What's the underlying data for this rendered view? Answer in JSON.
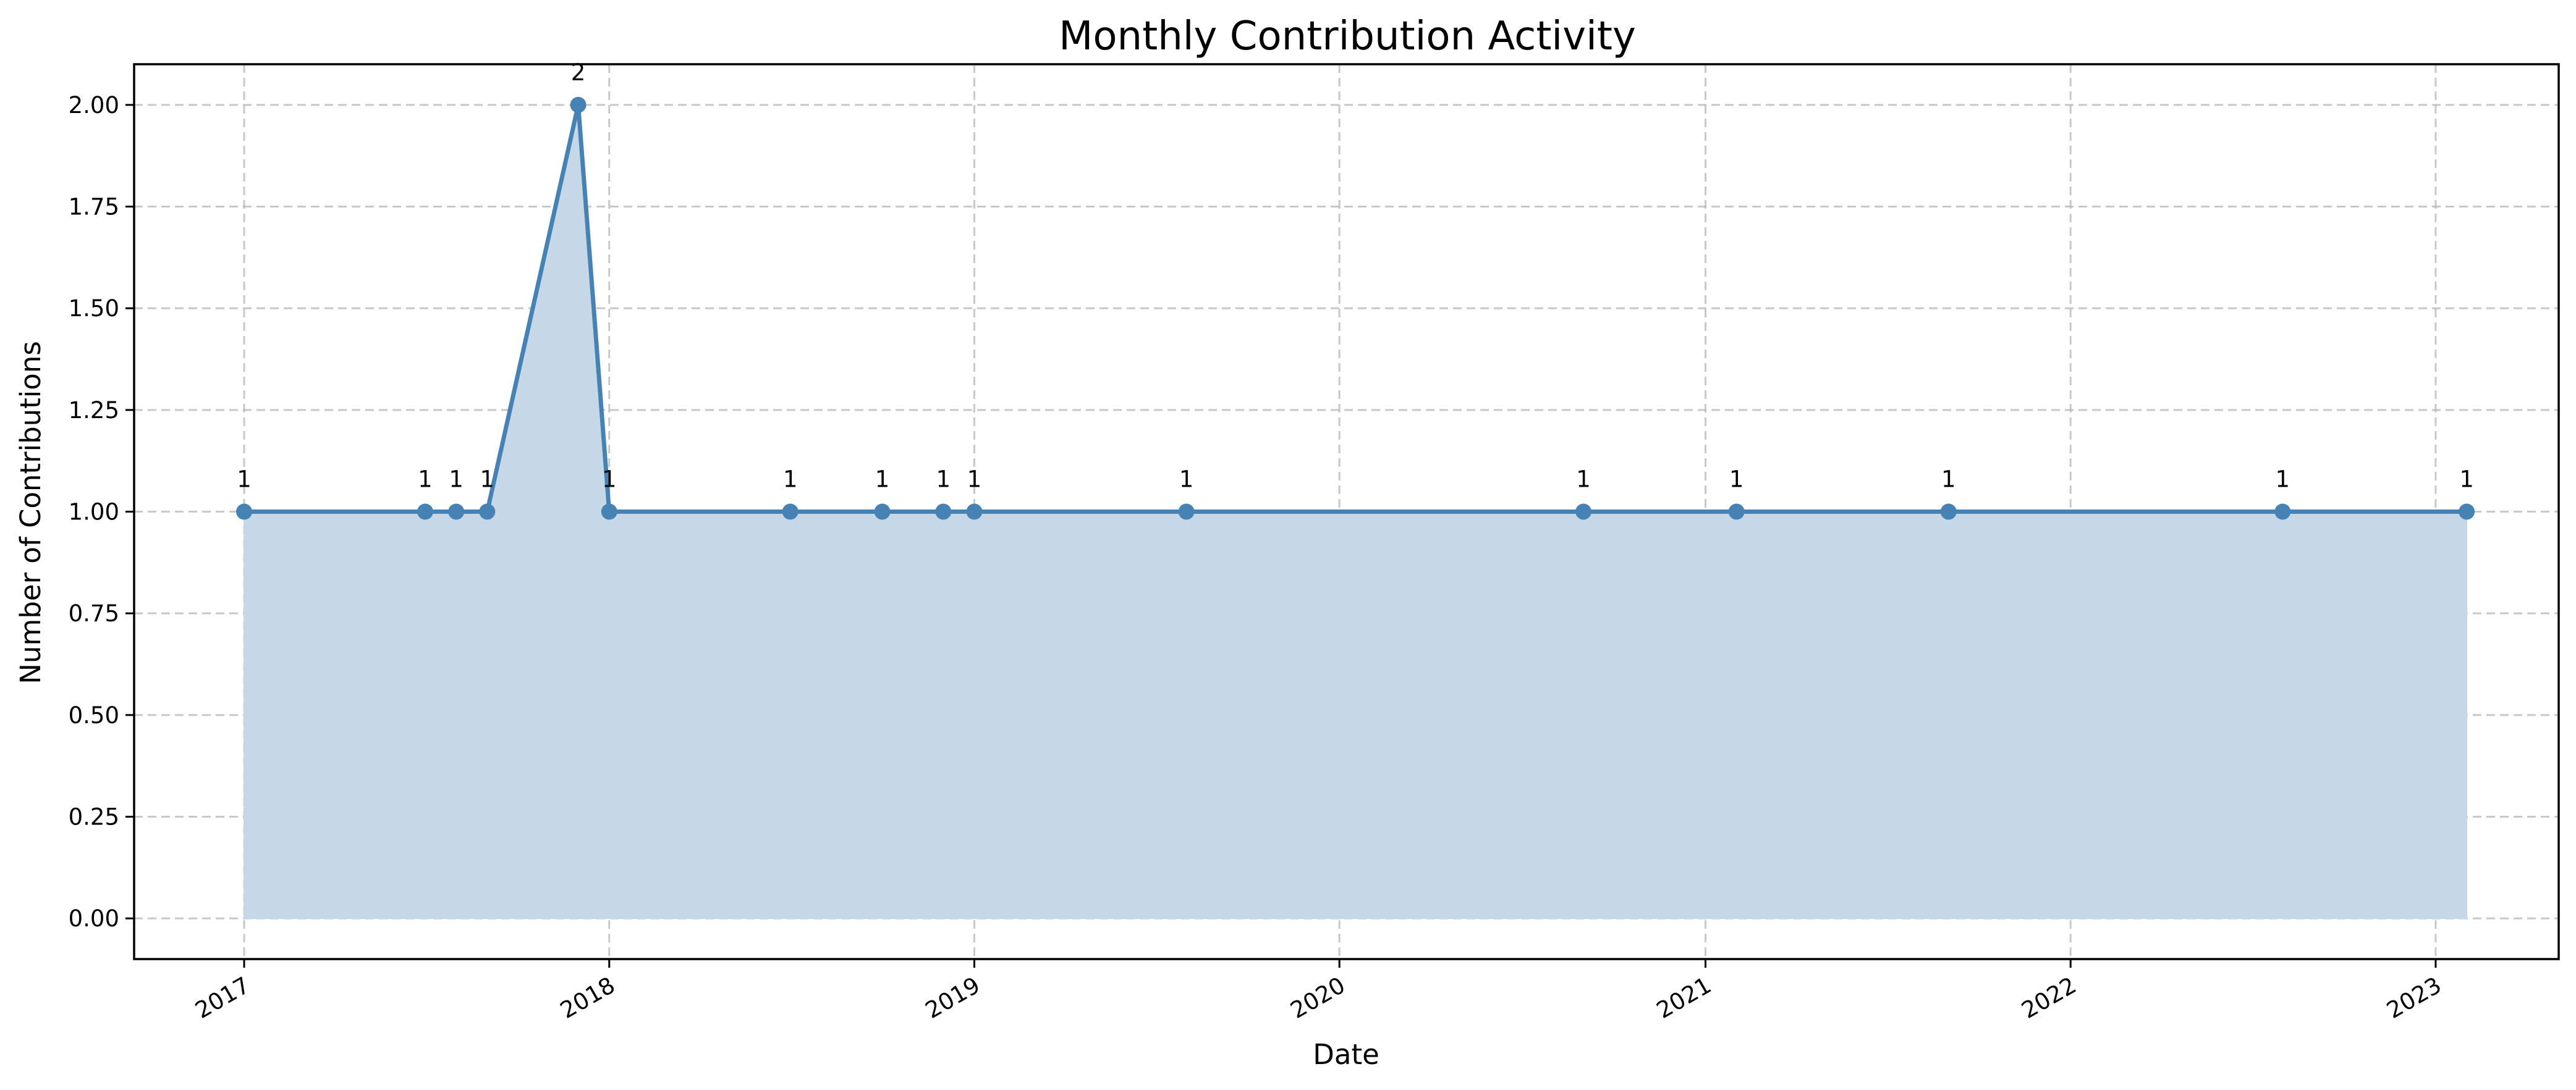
{
  "chart_data": {
    "type": "area",
    "title": "Monthly Contribution Activity",
    "xlabel": "Date",
    "ylabel": "Number of Contributions",
    "x_tick_labels": [
      "2017",
      "2018",
      "2019",
      "2020",
      "2021",
      "2022",
      "2023"
    ],
    "y_ticks": [
      0.0,
      0.25,
      0.5,
      0.75,
      1.0,
      1.25,
      1.5,
      1.75,
      2.0
    ],
    "y_tick_labels": [
      "0.00",
      "0.25",
      "0.50",
      "0.75",
      "1.00",
      "1.25",
      "1.50",
      "1.75",
      "2.00"
    ],
    "xlim": [
      "2016-09-13",
      "2023-05-04"
    ],
    "ylim": [
      -0.1,
      2.1
    ],
    "grid": true,
    "colors": {
      "line": "#4682b4",
      "fill": "#c6d8e7"
    },
    "series": [
      {
        "x": [
          "2017-01-01",
          "2017-07-01",
          "2017-08-01",
          "2017-09-01",
          "2017-12-01",
          "2018-01-01",
          "2018-07-01",
          "2018-10-01",
          "2018-12-01",
          "2019-01-01",
          "2019-08-01",
          "2020-09-01",
          "2021-02-01",
          "2021-09-01",
          "2022-08-01",
          "2023-02-01"
        ],
        "values": [
          1,
          1,
          1,
          1,
          2,
          1,
          1,
          1,
          1,
          1,
          1,
          1,
          1,
          1,
          1,
          1
        ],
        "data_labels": [
          "1",
          "1",
          "1",
          "1",
          "2",
          "1",
          "1",
          "1",
          "1",
          "1",
          "1",
          "1",
          "1",
          "1",
          "1",
          "1"
        ]
      }
    ]
  }
}
